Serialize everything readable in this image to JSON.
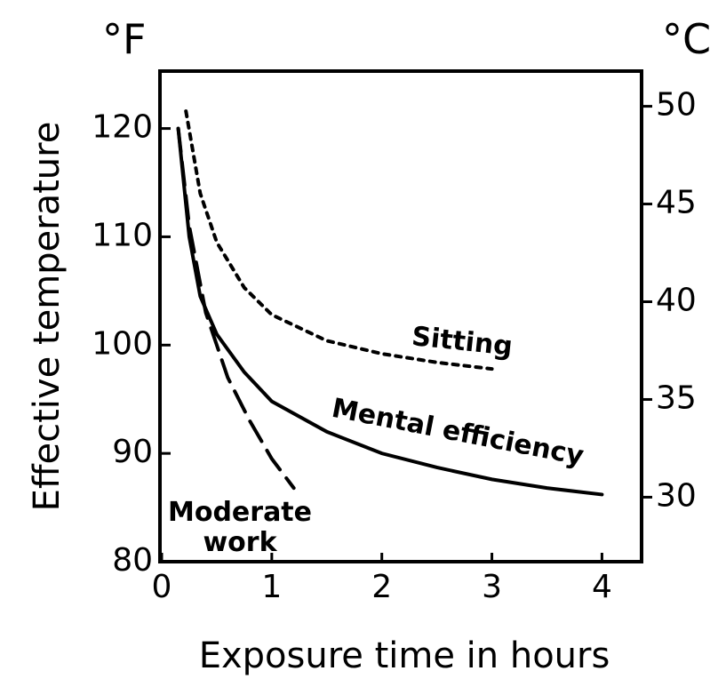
{
  "chart_data": {
    "type": "line",
    "xlabel": "Exposure time in hours",
    "ylabel": "Effective temperature",
    "y_unit": "°F",
    "y2_unit": "°C",
    "xlim": [
      0,
      4.36
    ],
    "xticks": [
      0,
      1,
      2,
      3,
      4
    ],
    "ylim": [
      80,
      125.3
    ],
    "yticks": [
      80,
      90,
      100,
      110,
      120
    ],
    "y2lim": [
      26.7,
      51.8
    ],
    "y2ticks": [
      30,
      35,
      40,
      45,
      50
    ],
    "series": [
      {
        "name": "Sitting",
        "color": "#000000",
        "style": "dotted",
        "x": [
          0.22,
          0.35,
          0.5,
          0.75,
          1,
          1.5,
          2,
          2.5,
          3
        ],
        "values": [
          121.6,
          114,
          109.5,
          105.3,
          102.8,
          100.4,
          99.2,
          98.4,
          97.8
        ]
      },
      {
        "name": "Mental efficiency",
        "color": "#000000",
        "style": "solid",
        "x": [
          0.15,
          0.25,
          0.35,
          0.5,
          0.75,
          1,
          1.5,
          2,
          2.5,
          3,
          3.5,
          4
        ],
        "values": [
          120,
          110,
          104.5,
          101,
          97.5,
          94.8,
          92,
          90,
          88.7,
          87.6,
          86.8,
          86.2
        ]
      },
      {
        "name": "Moderate work",
        "color": "#000000",
        "style": "dashed",
        "x": [
          0.15,
          0.25,
          0.4,
          0.6,
          0.8,
          1,
          1.2
        ],
        "values": [
          120,
          111,
          103,
          97,
          93,
          89.5,
          86.8
        ]
      }
    ]
  }
}
